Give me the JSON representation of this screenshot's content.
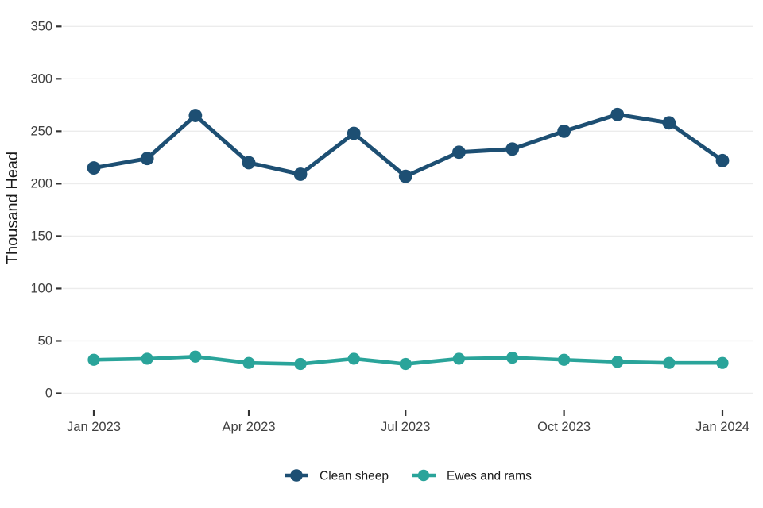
{
  "chart_data": {
    "type": "line",
    "x": [
      "Jan 2023",
      "Feb 2023",
      "Mar 2023",
      "Apr 2023",
      "May 2023",
      "Jun 2023",
      "Jul 2023",
      "Aug 2023",
      "Sep 2023",
      "Oct 2023",
      "Nov 2023",
      "Dec 2023",
      "Jan 2024"
    ],
    "series": [
      {
        "name": "Clean sheep",
        "color": "#1d4f73",
        "values": [
          215,
          224,
          265,
          220,
          209,
          248,
          207,
          230,
          233,
          250,
          266,
          258,
          222
        ]
      },
      {
        "name": "Ewes and rams",
        "color": "#2aa49a",
        "values": [
          32,
          33,
          35,
          29,
          28,
          33,
          28,
          33,
          34,
          32,
          30,
          29,
          29
        ]
      }
    ],
    "title": "",
    "xlabel": "",
    "ylabel": "Thousand Head",
    "ylim": [
      0,
      350
    ],
    "yticks": [
      350,
      300,
      250,
      200,
      150,
      100,
      50,
      0
    ],
    "xticks": [
      "Jan 2023",
      "Apr 2023",
      "Jul 2023",
      "Oct 2023",
      "Jan 2024"
    ],
    "grid": "horizontal-major-only",
    "legend_position": "bottom-center",
    "colors": {
      "gridline": "#ececec",
      "tick_mark": "#333333",
      "tick_label": "#404040",
      "axis_title": "#1a1a1a",
      "legend_text": "#1a1a1a",
      "background": "#ffffff"
    }
  }
}
